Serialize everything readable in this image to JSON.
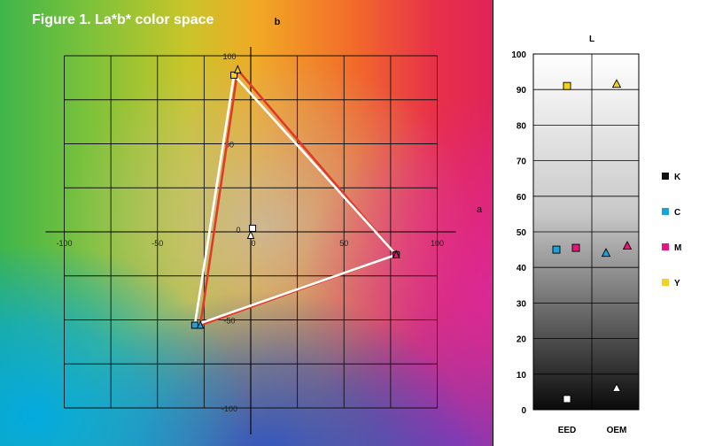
{
  "figure_title": "Figure 1. La*b* color space",
  "chart_data": [
    {
      "type": "scatter",
      "subtype": "lab-gamut",
      "xlabel": "a",
      "ylabel": "b",
      "xlim": [
        -110,
        115
      ],
      "ylim": [
        -120,
        110
      ],
      "x_ticks": [
        -100,
        -50,
        0,
        50,
        100
      ],
      "y_ticks": [
        -100,
        -50,
        0,
        50,
        100
      ],
      "grid": true,
      "series": [
        {
          "name": "EED",
          "marker": "square",
          "line_color": "#ffffff",
          "points": [
            {
              "x": -9,
              "y": 89
            },
            {
              "x": 78,
              "y": -13
            },
            {
              "x": -30,
              "y": -53
            },
            {
              "x": 1,
              "y": 2
            }
          ]
        },
        {
          "name": "OEM",
          "marker": "triangle",
          "line_color": "#e23a2a",
          "points": [
            {
              "x": -7,
              "y": 92
            },
            {
              "x": 78,
              "y": -13
            },
            {
              "x": -27,
              "y": -53
            },
            {
              "x": 0,
              "y": -2
            }
          ]
        }
      ]
    },
    {
      "type": "scatter",
      "subtype": "lightness",
      "ylabel": "L",
      "ylim": [
        0,
        100
      ],
      "y_ticks": [
        0,
        10,
        20,
        30,
        40,
        50,
        60,
        70,
        80,
        90,
        100
      ],
      "categories": [
        "EED",
        "OEM"
      ],
      "legend": [
        {
          "label": "K",
          "color": "#111111"
        },
        {
          "label": "C",
          "color": "#1aa3d9"
        },
        {
          "label": "M",
          "color": "#e8157a"
        },
        {
          "label": "Y",
          "color": "#f2d21a"
        }
      ],
      "legend_position": "right",
      "points": [
        {
          "category": "EED",
          "ink": "K",
          "L": 3,
          "marker": "square"
        },
        {
          "category": "EED",
          "ink": "C",
          "L": 45,
          "marker": "square"
        },
        {
          "category": "EED",
          "ink": "M",
          "L": 45.5,
          "marker": "square"
        },
        {
          "category": "EED",
          "ink": "Y",
          "L": 91,
          "marker": "square"
        },
        {
          "category": "OEM",
          "ink": "K",
          "L": 6,
          "marker": "triangle"
        },
        {
          "category": "OEM",
          "ink": "C",
          "L": 44,
          "marker": "triangle"
        },
        {
          "category": "OEM",
          "ink": "M",
          "L": 46,
          "marker": "triangle"
        },
        {
          "category": "OEM",
          "ink": "Y",
          "L": 91.5,
          "marker": "triangle"
        }
      ]
    }
  ]
}
